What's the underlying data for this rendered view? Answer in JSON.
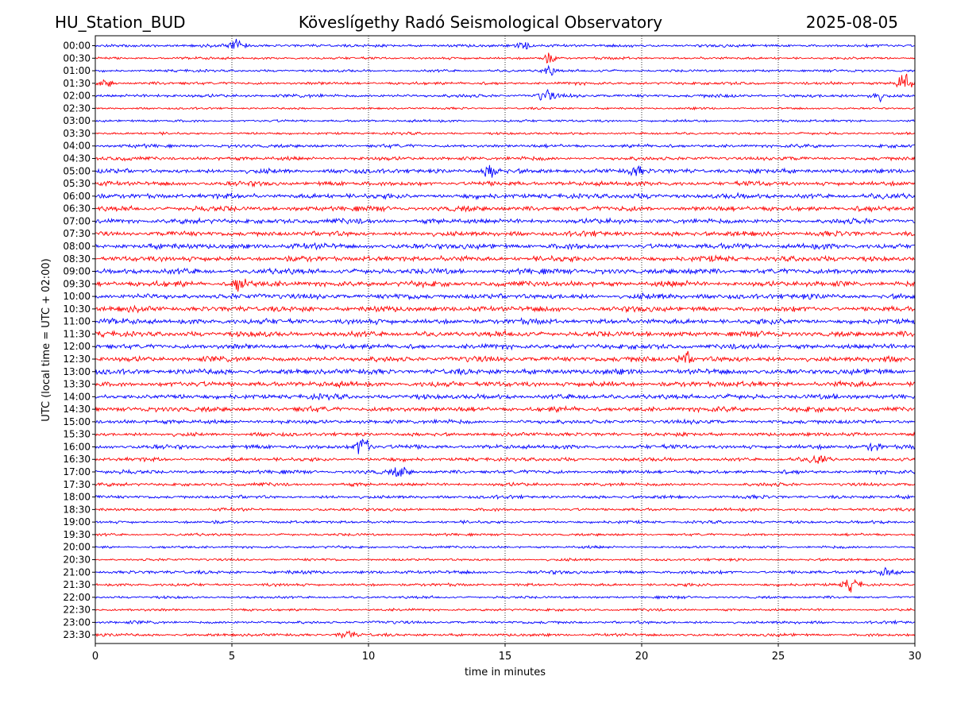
{
  "header": {
    "station": "HU_Station_BUD",
    "observatory": "Köveslígethy Radó Seismological Observatory",
    "date": "2025-08-05"
  },
  "chart_data": {
    "type": "line",
    "title": "Köveslígethy Radó Seismological Observatory",
    "xlabel": "time in minutes",
    "ylabel": "UTC (local time = UTC + 02:00)",
    "xlim": [
      0,
      30
    ],
    "x_ticks": [
      "0",
      "5",
      "10",
      "15",
      "20",
      "25",
      "30"
    ],
    "grid": "vertical dotted lines at x ticks",
    "trace_colors": [
      "#0000ff",
      "#ff0000"
    ],
    "rows": [
      {
        "label": "00:00",
        "amp": 0.35,
        "events": [
          {
            "t": 5.2,
            "a": 1.3
          },
          {
            "t": 15.7,
            "a": 0.7
          }
        ]
      },
      {
        "label": "00:30",
        "amp": 0.3,
        "events": [
          {
            "t": 16.6,
            "a": 1.0
          }
        ]
      },
      {
        "label": "01:00",
        "amp": 0.3,
        "events": [
          {
            "t": 16.6,
            "a": 0.9
          }
        ]
      },
      {
        "label": "01:30",
        "amp": 0.35,
        "events": [
          {
            "t": 29.6,
            "a": 2.4
          },
          {
            "t": 0.4,
            "a": 0.7
          }
        ]
      },
      {
        "label": "02:00",
        "amp": 0.4,
        "events": [
          {
            "t": 16.5,
            "a": 1.1
          },
          {
            "t": 28.6,
            "a": 1.0
          }
        ]
      },
      {
        "label": "02:30",
        "amp": 0.25,
        "events": []
      },
      {
        "label": "03:00",
        "amp": 0.3,
        "events": []
      },
      {
        "label": "03:30",
        "amp": 0.3,
        "events": []
      },
      {
        "label": "04:00",
        "amp": 0.4,
        "events": []
      },
      {
        "label": "04:30",
        "amp": 0.45,
        "events": []
      },
      {
        "label": "05:00",
        "amp": 0.55,
        "events": [
          {
            "t": 14.5,
            "a": 1.4
          },
          {
            "t": 19.8,
            "a": 0.8
          }
        ]
      },
      {
        "label": "05:30",
        "amp": 0.55,
        "events": []
      },
      {
        "label": "06:00",
        "amp": 0.6,
        "events": []
      },
      {
        "label": "06:30",
        "amp": 0.6,
        "events": []
      },
      {
        "label": "07:00",
        "amp": 0.6,
        "events": []
      },
      {
        "label": "07:30",
        "amp": 0.6,
        "events": []
      },
      {
        "label": "08:00",
        "amp": 0.65,
        "events": []
      },
      {
        "label": "08:30",
        "amp": 0.65,
        "events": []
      },
      {
        "label": "09:00",
        "amp": 0.65,
        "events": []
      },
      {
        "label": "09:30",
        "amp": 0.65,
        "events": [
          {
            "t": 5.3,
            "a": 1.4
          }
        ]
      },
      {
        "label": "10:00",
        "amp": 0.65,
        "events": []
      },
      {
        "label": "10:30",
        "amp": 0.65,
        "events": []
      },
      {
        "label": "11:00",
        "amp": 0.65,
        "events": []
      },
      {
        "label": "11:30",
        "amp": 0.65,
        "events": []
      },
      {
        "label": "12:00",
        "amp": 0.6,
        "events": []
      },
      {
        "label": "12:30",
        "amp": 0.65,
        "events": [
          {
            "t": 21.6,
            "a": 1.3
          }
        ]
      },
      {
        "label": "13:00",
        "amp": 0.65,
        "events": []
      },
      {
        "label": "13:30",
        "amp": 0.65,
        "events": []
      },
      {
        "label": "14:00",
        "amp": 0.6,
        "events": []
      },
      {
        "label": "14:30",
        "amp": 0.6,
        "events": []
      },
      {
        "label": "15:00",
        "amp": 0.5,
        "events": []
      },
      {
        "label": "15:30",
        "amp": 0.45,
        "events": []
      },
      {
        "label": "16:00",
        "amp": 0.5,
        "events": [
          {
            "t": 9.8,
            "a": 2.3
          },
          {
            "t": 28.5,
            "a": 0.9
          }
        ]
      },
      {
        "label": "16:30",
        "amp": 0.45,
        "events": [
          {
            "t": 26.5,
            "a": 0.9
          }
        ]
      },
      {
        "label": "17:00",
        "amp": 0.45,
        "events": [
          {
            "t": 11.2,
            "a": 1.0
          }
        ]
      },
      {
        "label": "17:30",
        "amp": 0.4,
        "events": []
      },
      {
        "label": "18:00",
        "amp": 0.4,
        "events": []
      },
      {
        "label": "18:30",
        "amp": 0.35,
        "events": []
      },
      {
        "label": "19:00",
        "amp": 0.35,
        "events": []
      },
      {
        "label": "19:30",
        "amp": 0.3,
        "events": []
      },
      {
        "label": "20:00",
        "amp": 0.3,
        "events": []
      },
      {
        "label": "20:30",
        "amp": 0.3,
        "events": []
      },
      {
        "label": "21:00",
        "amp": 0.4,
        "events": [
          {
            "t": 29.0,
            "a": 0.9
          }
        ]
      },
      {
        "label": "21:30",
        "amp": 0.35,
        "events": [
          {
            "t": 27.7,
            "a": 1.4
          }
        ]
      },
      {
        "label": "22:00",
        "amp": 0.3,
        "events": []
      },
      {
        "label": "22:30",
        "amp": 0.3,
        "events": []
      },
      {
        "label": "23:00",
        "amp": 0.35,
        "events": []
      },
      {
        "label": "23:30",
        "amp": 0.35,
        "events": [
          {
            "t": 9.2,
            "a": 0.9
          }
        ]
      }
    ]
  }
}
